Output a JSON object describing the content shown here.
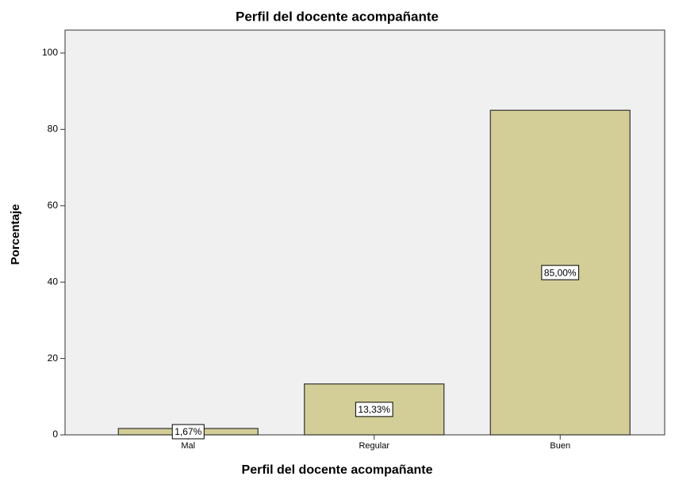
{
  "chart_data": {
    "type": "bar",
    "title": "Perfil del docente acompañante",
    "x_label": "Perfil del docente acompañante",
    "y_label": "Porcentaje",
    "categories": [
      "Mal",
      "Regular",
      "Buen"
    ],
    "values": [
      1.67,
      13.33,
      85.0
    ],
    "value_labels": [
      "1,67%",
      "13,33%",
      "85,00%"
    ],
    "color": "#d3ce97",
    "ylim": [
      0,
      106
    ],
    "yticks": [
      0,
      20,
      40,
      60,
      80,
      100
    ]
  }
}
